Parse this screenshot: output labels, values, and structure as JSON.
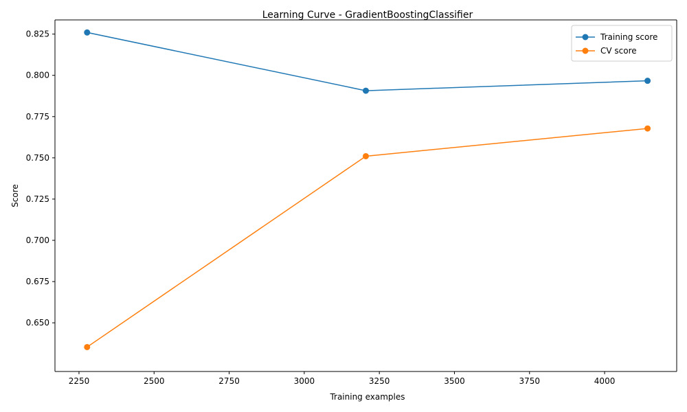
{
  "chart_data": {
    "type": "line",
    "title": "Learning Curve - GradientBoostingClassifier",
    "xlabel": "Training examples",
    "ylabel": "Score",
    "xlim": [
      2170,
      4240
    ],
    "ylim": [
      0.6205,
      0.8336
    ],
    "x": [
      2277,
      3205,
      4143
    ],
    "xticks": [
      2250,
      2500,
      2750,
      3000,
      3250,
      3500,
      3750,
      4000
    ],
    "xtick_labels": [
      "2250",
      "2500",
      "2750",
      "3000",
      "3250",
      "3500",
      "3750",
      "4000"
    ],
    "yticks": [
      0.65,
      0.675,
      0.7,
      0.725,
      0.75,
      0.775,
      0.8,
      0.825
    ],
    "ytick_labels": [
      "0.650",
      "0.675",
      "0.700",
      "0.725",
      "0.750",
      "0.775",
      "0.800",
      "0.825"
    ],
    "grid": false,
    "legend_position": "top-right",
    "series": [
      {
        "name": "Training score",
        "color": "#1f77b4",
        "marker": "circle",
        "values": [
          0.826,
          0.7907,
          0.7967
        ]
      },
      {
        "name": "CV score",
        "color": "#ff7f0e",
        "marker": "circle",
        "values": [
          0.6353,
          0.751,
          0.7678
        ]
      }
    ]
  }
}
